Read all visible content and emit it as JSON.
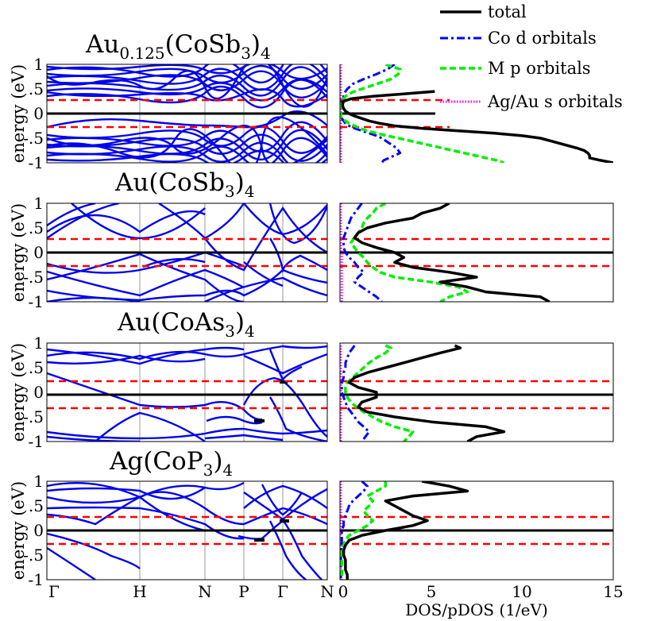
{
  "legend": {
    "entries": [
      {
        "label": "total",
        "color": "#000000",
        "style": "solid"
      },
      {
        "label": "Co d orbitals",
        "color": "#0000ff",
        "style": "dashdot"
      },
      {
        "label": "M p orbitals",
        "color": "#00ee00",
        "style": "dashed"
      },
      {
        "label": "Ag/Au s orbitals",
        "color": "#ff00ff",
        "style": "dotted"
      }
    ]
  },
  "shared": {
    "ylabel": "energy (eV)",
    "y_ticks": [
      "1",
      ".5",
      "0",
      "-.5",
      "-1"
    ],
    "x_ticks": [
      "Γ",
      "H",
      "N",
      "P",
      "Γ",
      "N"
    ],
    "dos_xlabel": "DOS/pDOS (1/eV)",
    "dos_ticks": [
      "0",
      "5",
      "10",
      "15"
    ]
  },
  "panels": [
    {
      "title_main": "Au",
      "title_sub": "0.125",
      "title_rest": "(CoSb",
      "title_sub2": "3",
      "title_end": ")",
      "title_sub3": "4"
    },
    {
      "title_main": "Au(CoSb",
      "title_sub": "3",
      "title_rest": ")",
      "title_sub2": "4",
      "title_end": "",
      "title_sub3": ""
    },
    {
      "title_main": "Au(CoAs",
      "title_sub": "3",
      "title_rest": ")",
      "title_sub2": "4",
      "title_end": "",
      "title_sub3": ""
    },
    {
      "title_main": "Ag(CoP",
      "title_sub": "3",
      "title_rest": ")",
      "title_sub2": "4",
      "title_end": "",
      "title_sub3": ""
    }
  ],
  "chart_data": [
    {
      "type": "line",
      "title": "Au0.125(CoSb3)4",
      "xlabel": "",
      "ylabel": "energy (eV)",
      "ylim": [
        -1,
        1
      ],
      "k_path": [
        "Γ",
        "H",
        "N",
        "P",
        "Γ",
        "N"
      ],
      "fermi_level": 0,
      "band_edges_dashed": [
        0.27,
        -0.27
      ],
      "dos_xlim": [
        0,
        15
      ],
      "dos": {
        "energy": [
          1.0,
          0.9,
          0.8,
          0.7,
          0.6,
          0.5,
          0.45,
          0.4,
          0.35,
          0.3,
          0.25,
          0.2,
          0.15,
          0.1,
          0.05,
          0.0,
          -0.05,
          -0.1,
          -0.15,
          -0.2,
          -0.25,
          -0.3,
          -0.35,
          -0.4,
          -0.45,
          -0.5,
          -0.55,
          -0.6,
          -0.65,
          -0.7,
          -0.75,
          -0.8,
          -0.85,
          -0.9,
          -0.95,
          -1.0
        ],
        "total": [
          null,
          null,
          null,
          null,
          null,
          null,
          5.2,
          3.5,
          1.8,
          0.6,
          0.2,
          0.15,
          0.15,
          0.2,
          0.3,
          0.5,
          0.8,
          1.2,
          1.6,
          2.2,
          3.0,
          4.5,
          6.5,
          8.5,
          10.0,
          11.0,
          11.5,
          12.0,
          12.5,
          13.0,
          13.4,
          13.6,
          13.7,
          13.7,
          14.3,
          15.0
        ],
        "co_d": [
          3.0,
          2.6,
          2.0,
          1.3,
          0.7,
          0.4,
          0.3,
          0.25,
          0.2,
          0.15,
          0.1,
          0.05,
          0.05,
          0.05,
          0.05,
          0.05,
          0.05,
          0.1,
          0.2,
          0.3,
          0.5,
          0.8,
          1.2,
          1.6,
          2.0,
          2.3,
          2.5,
          2.7,
          2.9,
          3.1,
          3.2,
          3.3,
          3.0,
          2.7,
          2.4,
          2.3
        ],
        "m_p": [
          2.5,
          3.3,
          3.2,
          2.8,
          2.0,
          1.2,
          0.8,
          0.5,
          0.3,
          0.2,
          0.1,
          0.05,
          0.05,
          0.05,
          0.05,
          0.05,
          0.05,
          0.1,
          0.3,
          0.5,
          0.8,
          1.1,
          1.5,
          2.0,
          2.6,
          3.2,
          3.8,
          4.4,
          5.0,
          5.6,
          6.2,
          6.8,
          7.4,
          8.0,
          8.6,
          9.0
        ],
        "s": [
          0.05,
          0.05,
          0.05,
          0.05,
          0.05,
          0.05,
          0.05,
          0.05,
          0.05,
          0.05,
          0.05,
          0.05,
          0.05,
          0.05,
          0.05,
          0.05,
          0.05,
          0.05,
          0.05,
          0.05,
          0.05,
          0.05,
          0.05,
          0.05,
          0.05,
          0.05,
          0.05,
          0.05,
          0.05,
          0.05,
          0.05,
          0.05,
          0.05,
          0.05,
          0.05,
          0.05
        ]
      }
    },
    {
      "type": "line",
      "title": "Au(CoSb3)4",
      "xlabel": "",
      "ylabel": "energy (eV)",
      "ylim": [
        -1,
        1
      ],
      "k_path": [
        "Γ",
        "H",
        "N",
        "P",
        "Γ",
        "N"
      ],
      "fermi_level": 0,
      "band_edges_dashed": [
        0.27,
        -0.27
      ],
      "dos_xlim": [
        0,
        15
      ],
      "dos": {
        "energy": [
          1.0,
          0.9,
          0.8,
          0.7,
          0.6,
          0.5,
          0.4,
          0.3,
          0.2,
          0.1,
          0.0,
          -0.1,
          -0.2,
          -0.3,
          -0.4,
          -0.5,
          -0.6,
          -0.7,
          -0.8,
          -0.9,
          -1.0
        ],
        "total": [
          6.0,
          5.5,
          4.5,
          4.0,
          2.5,
          1.5,
          1.0,
          0.8,
          1.2,
          2.0,
          3.0,
          3.5,
          3.0,
          4.0,
          6.0,
          7.5,
          5.5,
          7.0,
          8.0,
          11.0,
          11.5
        ],
        "co_d": [
          1.2,
          1.0,
          0.8,
          0.6,
          0.5,
          0.4,
          0.3,
          0.2,
          0.2,
          0.2,
          0.3,
          0.5,
          0.8,
          1.0,
          1.3,
          1.0,
          0.8,
          1.2,
          1.6,
          2.0,
          2.3
        ],
        "m_p": [
          2.5,
          2.0,
          1.8,
          1.5,
          1.3,
          1.2,
          1.0,
          0.8,
          0.6,
          0.8,
          1.0,
          1.3,
          1.5,
          1.8,
          2.2,
          3.0,
          5.0,
          6.5,
          7.0,
          6.0,
          5.5
        ],
        "s": [
          0.05,
          0.05,
          0.05,
          0.05,
          0.05,
          0.05,
          0.05,
          0.05,
          0.05,
          0.05,
          0.1,
          0.1,
          0.1,
          0.1,
          0.1,
          0.1,
          0.1,
          0.1,
          0.1,
          0.1,
          0.1
        ]
      }
    },
    {
      "type": "line",
      "title": "Au(CoAs3)4",
      "xlabel": "",
      "ylabel": "energy (eV)",
      "ylim": [
        -1,
        1
      ],
      "k_path": [
        "Γ",
        "H",
        "N",
        "P",
        "Γ",
        "N"
      ],
      "fermi_level": 0,
      "band_edges_dashed": [
        0.27,
        -0.27
      ],
      "dos_xlim": [
        0,
        15
      ],
      "dos": {
        "energy": [
          0.95,
          0.9,
          0.8,
          0.7,
          0.6,
          0.5,
          0.4,
          0.3,
          0.2,
          0.1,
          0.0,
          -0.1,
          -0.2,
          -0.3,
          -0.4,
          -0.5,
          -0.6,
          -0.7,
          -0.8,
          -0.9,
          -1.0
        ],
        "total": [
          6.3,
          6.6,
          5.5,
          4.5,
          3.5,
          2.5,
          1.5,
          0.8,
          0.5,
          1.0,
          2.0,
          2.0,
          1.2,
          1.0,
          1.5,
          3.0,
          5.0,
          8.0,
          9.0,
          7.5,
          7.0
        ],
        "co_d": [
          0.8,
          0.7,
          0.5,
          0.4,
          0.3,
          0.3,
          0.2,
          0.2,
          0.1,
          0.1,
          0.1,
          0.2,
          0.3,
          0.4,
          0.6,
          0.8,
          1.0,
          1.3,
          1.6,
          1.4,
          1.2
        ],
        "m_p": [
          2.5,
          2.8,
          2.5,
          2.0,
          1.6,
          1.3,
          1.0,
          0.7,
          0.4,
          0.3,
          0.3,
          0.4,
          0.6,
          0.9,
          1.3,
          1.8,
          2.3,
          3.0,
          4.0,
          3.8,
          3.5
        ],
        "s": [
          0.05,
          0.05,
          0.05,
          0.05,
          0.05,
          0.05,
          0.05,
          0.05,
          0.05,
          0.05,
          0.05,
          0.05,
          0.05,
          0.05,
          0.05,
          0.05,
          0.05,
          0.05,
          0.05,
          0.05,
          0.05
        ]
      }
    },
    {
      "type": "line",
      "title": "Ag(CoP3)4",
      "xlabel": "DOS/pDOS (1/eV)",
      "ylabel": "energy (eV)",
      "ylim": [
        -1,
        1
      ],
      "k_path": [
        "Γ",
        "H",
        "N",
        "P",
        "Γ",
        "N"
      ],
      "fermi_level": 0,
      "band_edges_dashed": [
        0.27,
        -0.27
      ],
      "dos_xlim": [
        0,
        15
      ],
      "dos": {
        "energy": [
          1.0,
          0.9,
          0.8,
          0.7,
          0.6,
          0.5,
          0.4,
          0.3,
          0.2,
          0.1,
          0.0,
          -0.1,
          -0.2,
          -0.3,
          -0.4,
          -0.5,
          -0.6,
          -0.7,
          -0.8,
          -0.9,
          -1.0
        ],
        "total": [
          4.5,
          6.0,
          7.0,
          4.0,
          2.5,
          3.0,
          3.5,
          4.0,
          4.8,
          4.0,
          2.5,
          1.2,
          0.5,
          0.3,
          0.2,
          0.2,
          0.3,
          0.3,
          0.3,
          0.4,
          0.4
        ],
        "co_d": [
          1.2,
          1.5,
          1.3,
          1.0,
          0.7,
          0.5,
          0.4,
          0.3,
          0.2,
          0.2,
          0.1,
          0.1,
          0.1,
          0.1,
          0.05,
          0.05,
          0.05,
          0.05,
          0.05,
          0.05,
          0.05
        ],
        "m_p": [
          2.5,
          2.5,
          2.0,
          1.5,
          1.8,
          1.6,
          1.3,
          1.5,
          1.8,
          1.5,
          1.0,
          0.5,
          0.3,
          0.2,
          0.1,
          0.1,
          0.1,
          0.1,
          0.1,
          0.1,
          0.1
        ],
        "s": [
          0.05,
          0.05,
          0.05,
          0.05,
          0.05,
          0.05,
          0.05,
          0.05,
          0.05,
          0.05,
          0.05,
          0.05,
          0.05,
          0.05,
          0.05,
          0.05,
          0.05,
          0.05,
          0.05,
          0.05,
          0.05
        ]
      }
    }
  ]
}
